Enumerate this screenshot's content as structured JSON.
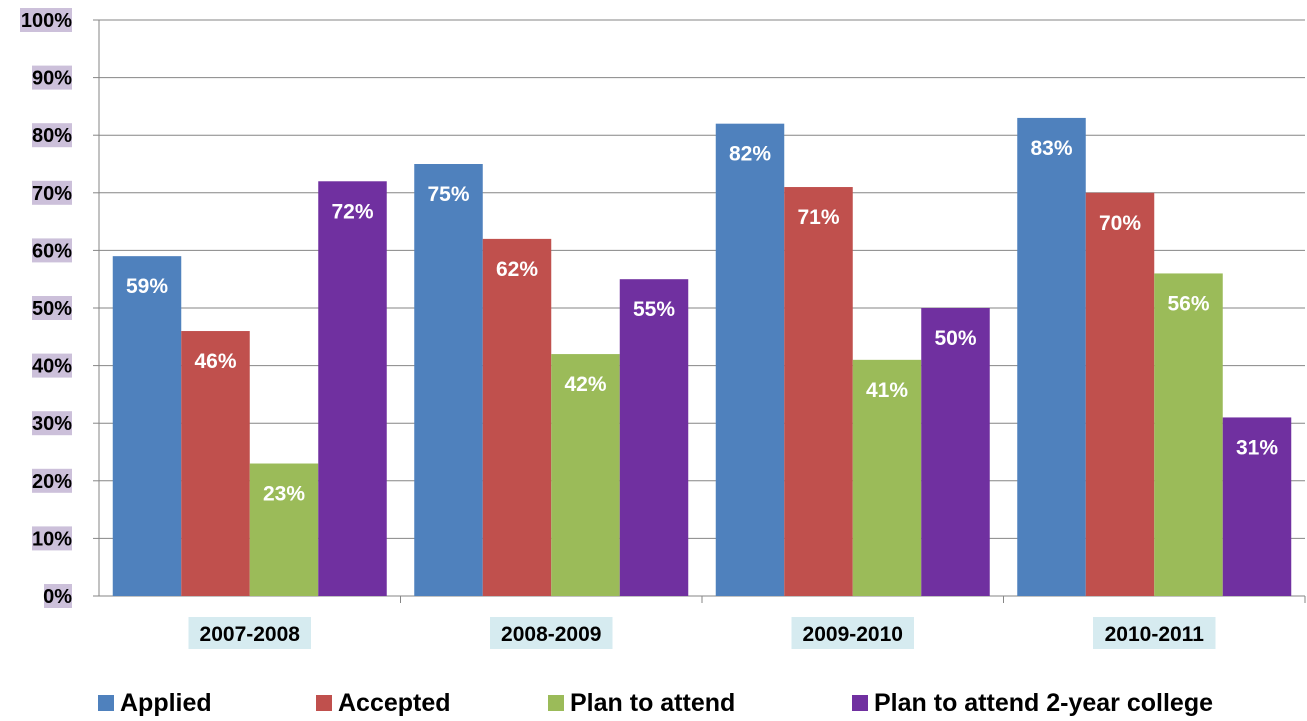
{
  "chart_data": {
    "type": "bar",
    "categories": [
      "2007-2008",
      "2008-2009",
      "2009-2010",
      "2010-2011"
    ],
    "series": [
      {
        "name": "Applied",
        "values": [
          59,
          75,
          82,
          83
        ],
        "labels": [
          "59%",
          "75%",
          "82%",
          "83%"
        ],
        "color": "#4f81bd"
      },
      {
        "name": "Accepted",
        "values": [
          46,
          62,
          71,
          70
        ],
        "labels": [
          "46%",
          "62%",
          "71%",
          "70%"
        ],
        "color": "#c0504d"
      },
      {
        "name": "Plan to attend",
        "values": [
          23,
          42,
          41,
          56
        ],
        "labels": [
          "23%",
          "42%",
          "41%",
          "56%"
        ],
        "color": "#9bbb59"
      },
      {
        "name": "Plan to attend 2-year college",
        "values": [
          72,
          55,
          50,
          31
        ],
        "labels": [
          "72%",
          "55%",
          "50%",
          "31%"
        ],
        "color": "#7030a0"
      }
    ],
    "ylim": [
      0,
      100
    ],
    "yticks": [
      "0%",
      "10%",
      "20%",
      "30%",
      "40%",
      "50%",
      "60%",
      "70%",
      "80%",
      "90%",
      "100%"
    ],
    "grid": true,
    "legend": "bottom",
    "ytick_bg_color": "#ccc0da",
    "xtick_bg_color": "#d6ebf0",
    "title": "",
    "xlabel": "",
    "ylabel": ""
  }
}
